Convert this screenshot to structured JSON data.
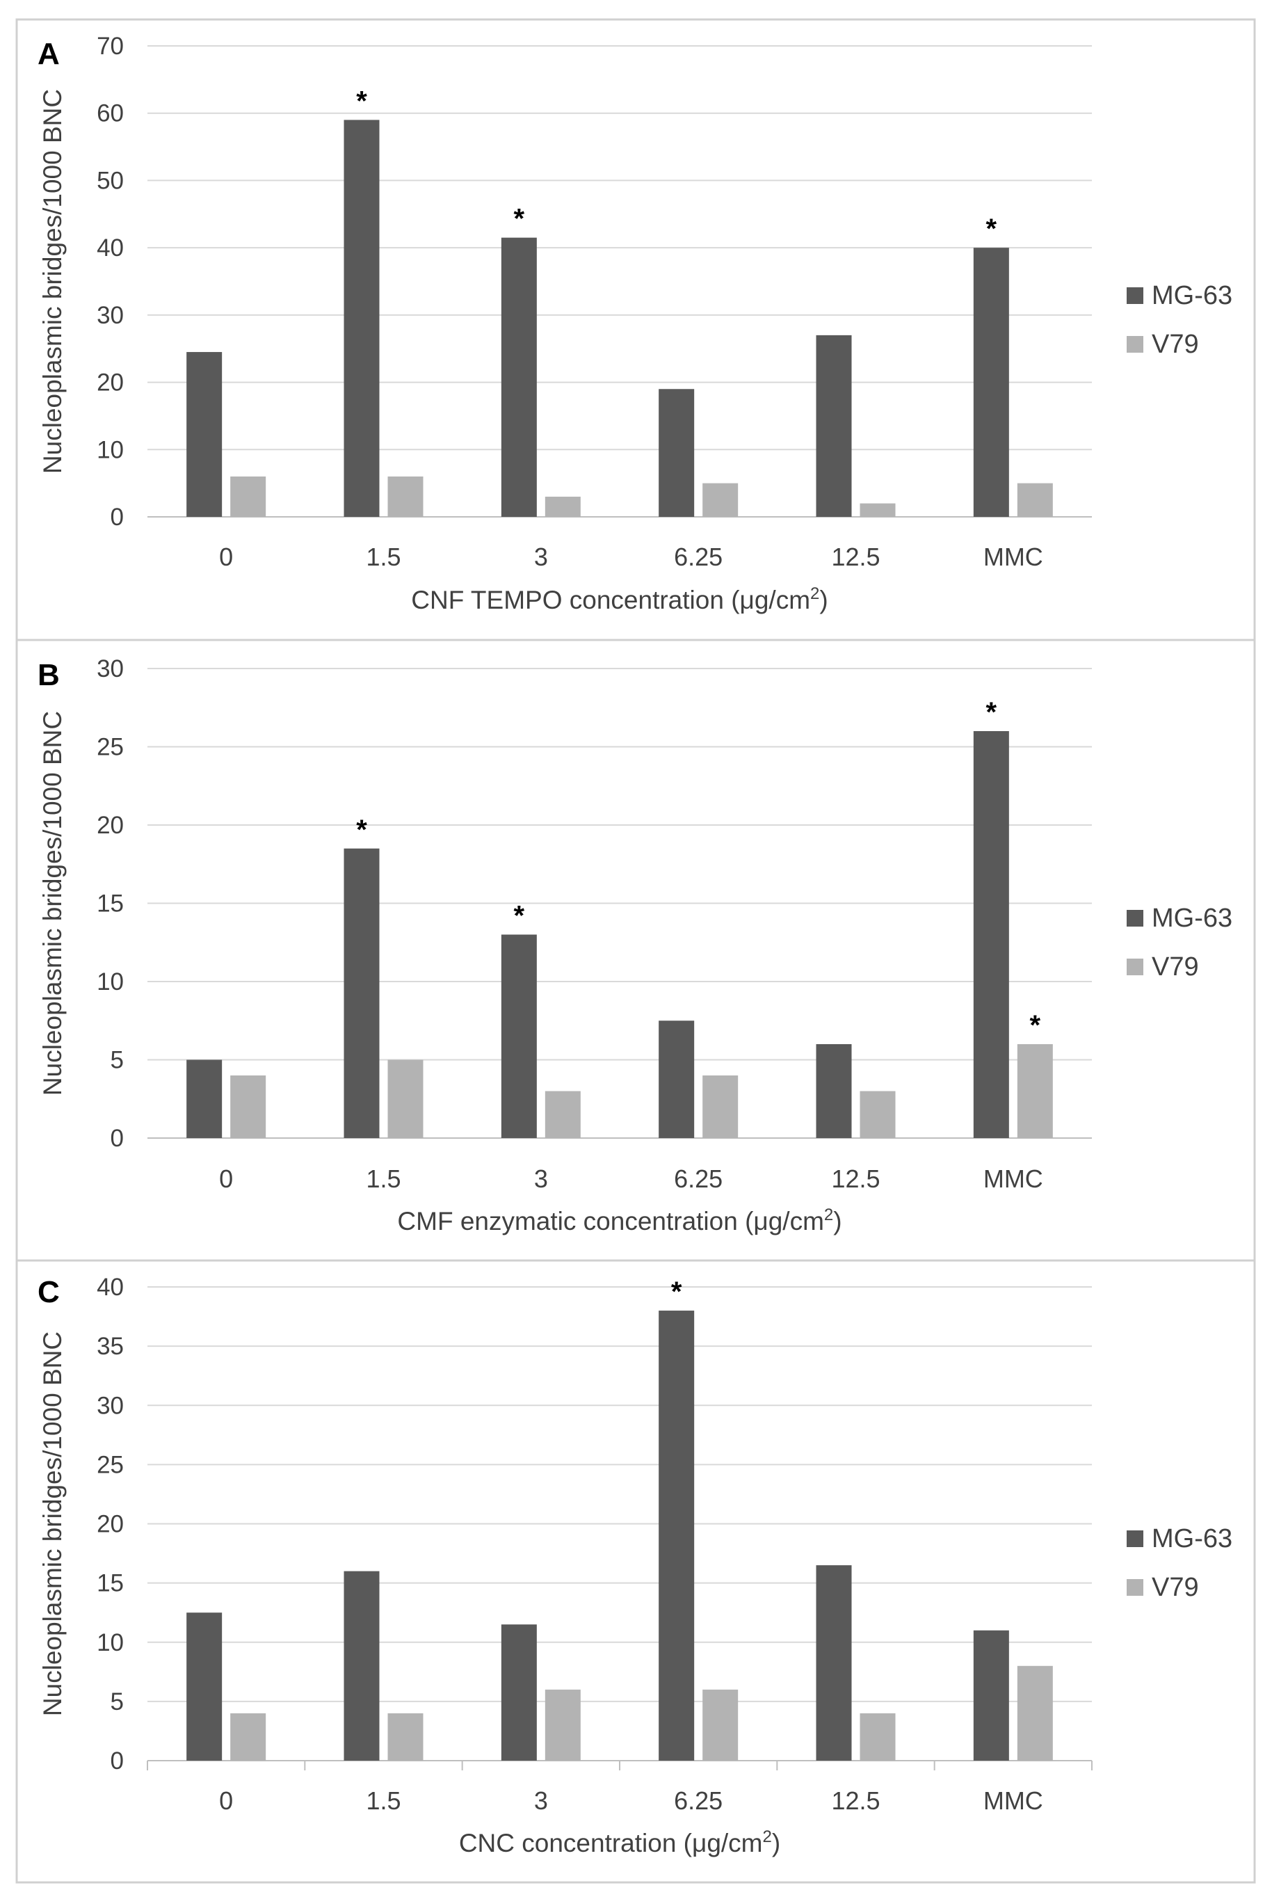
{
  "colors": {
    "mg63": "#595959",
    "v79": "#b3b3b3"
  },
  "chart_data": [
    {
      "panel_label": "A",
      "type": "bar",
      "categories": [
        "0",
        "1.5",
        "3",
        "6.25",
        "12.5",
        "MMC"
      ],
      "series": [
        {
          "name": "MG-63",
          "values": [
            24.5,
            59,
            41.5,
            19,
            27,
            40
          ],
          "significant": [
            false,
            true,
            true,
            false,
            false,
            true
          ]
        },
        {
          "name": "V79",
          "values": [
            6,
            6,
            3,
            5,
            2,
            5
          ],
          "significant": [
            false,
            false,
            false,
            false,
            false,
            false
          ]
        }
      ],
      "ylabel": "Nucleoplasmic bridges/1000 BNC",
      "xlabel": {
        "text": "CNF TEMPO concentration (μg/cm",
        "sup": "2",
        "suffix": ")"
      },
      "ylim": [
        0,
        70
      ],
      "ystep": 10,
      "grid": true,
      "x_ticks_between": false,
      "significance_marker": "*",
      "legend": "right"
    },
    {
      "panel_label": "B",
      "type": "bar",
      "categories": [
        "0",
        "1.5",
        "3",
        "6.25",
        "12.5",
        "MMC"
      ],
      "series": [
        {
          "name": "MG-63",
          "values": [
            5,
            18.5,
            13,
            7.5,
            6,
            26
          ],
          "significant": [
            false,
            true,
            true,
            false,
            false,
            true
          ]
        },
        {
          "name": "V79",
          "values": [
            4,
            5,
            3,
            4,
            3,
            6
          ],
          "significant": [
            false,
            false,
            false,
            false,
            false,
            true
          ]
        }
      ],
      "ylabel": "Nucleoplasmic bridges/1000 BNC",
      "xlabel": {
        "text": "CMF enzymatic concentration (μg/cm",
        "sup": "2",
        "suffix": ")"
      },
      "ylim": [
        0,
        30
      ],
      "ystep": 5,
      "grid": true,
      "x_ticks_between": false,
      "significance_marker": "*",
      "legend": "right"
    },
    {
      "panel_label": "C",
      "type": "bar",
      "categories": [
        "0",
        "1.5",
        "3",
        "6.25",
        "12.5",
        "MMC"
      ],
      "series": [
        {
          "name": "MG-63",
          "values": [
            12.5,
            16,
            11.5,
            38,
            16.5,
            11
          ],
          "significant": [
            false,
            false,
            false,
            true,
            false,
            false
          ]
        },
        {
          "name": "V79",
          "values": [
            4,
            4,
            6,
            6,
            4,
            8
          ],
          "significant": [
            false,
            false,
            false,
            false,
            false,
            false
          ]
        }
      ],
      "ylabel": "Nucleoplasmic bridges/1000 BNC",
      "xlabel": {
        "text": "CNC concentration (μg/cm",
        "sup": "2",
        "suffix": ")"
      },
      "ylim": [
        0,
        40
      ],
      "ystep": 5,
      "grid": true,
      "x_ticks_between": true,
      "significance_marker": "*",
      "legend": "right"
    }
  ]
}
